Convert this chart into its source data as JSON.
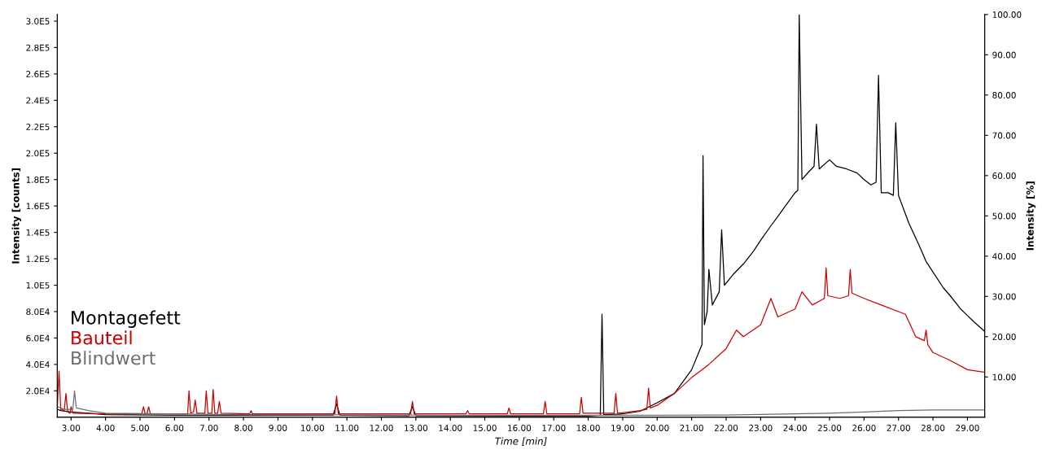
{
  "chart_data": {
    "type": "line",
    "xlabel": "Time [min]",
    "ylabel": "Intensity [counts]",
    "y2label": "Intensity [%]",
    "xlim": [
      2.6,
      29.5
    ],
    "ylim": [
      0,
      305000
    ],
    "y2lim": [
      0,
      100
    ],
    "xticks": [
      {
        "value": 3,
        "label": "3.00"
      },
      {
        "value": 4,
        "label": "4.00"
      },
      {
        "value": 5,
        "label": "5.00"
      },
      {
        "value": 6,
        "label": "6.00"
      },
      {
        "value": 7,
        "label": "7.00"
      },
      {
        "value": 8,
        "label": "8.00"
      },
      {
        "value": 9,
        "label": "9.00"
      },
      {
        "value": 10,
        "label": "10.00"
      },
      {
        "value": 11,
        "label": "11.00"
      },
      {
        "value": 12,
        "label": "12.00"
      },
      {
        "value": 13,
        "label": "13.00"
      },
      {
        "value": 14,
        "label": "14.00"
      },
      {
        "value": 15,
        "label": "15.00"
      },
      {
        "value": 16,
        "label": "16.00"
      },
      {
        "value": 17,
        "label": "17.00"
      },
      {
        "value": 18,
        "label": "18.00"
      },
      {
        "value": 19,
        "label": "19.00"
      },
      {
        "value": 20,
        "label": "20.00"
      },
      {
        "value": 21,
        "label": "21.00"
      },
      {
        "value": 22,
        "label": "22.00"
      },
      {
        "value": 23,
        "label": "23.00"
      },
      {
        "value": 24,
        "label": "24.00"
      },
      {
        "value": 25,
        "label": "25.00"
      },
      {
        "value": 26,
        "label": "26.00"
      },
      {
        "value": 27,
        "label": "27.00"
      },
      {
        "value": 28,
        "label": "28.00"
      },
      {
        "value": 29,
        "label": "29.00"
      }
    ],
    "yticks": [
      {
        "value": 20000,
        "label": "2.0E4"
      },
      {
        "value": 40000,
        "label": "4.0E4"
      },
      {
        "value": 60000,
        "label": "6.0E4"
      },
      {
        "value": 80000,
        "label": "8.0E4"
      },
      {
        "value": 100000,
        "label": "1.0E5"
      },
      {
        "value": 120000,
        "label": "1.2E5"
      },
      {
        "value": 140000,
        "label": "1.4E5"
      },
      {
        "value": 160000,
        "label": "1.6E5"
      },
      {
        "value": 180000,
        "label": "1.8E5"
      },
      {
        "value": 200000,
        "label": "2.0E5"
      },
      {
        "value": 220000,
        "label": "2.2E5"
      },
      {
        "value": 240000,
        "label": "2.4E5"
      },
      {
        "value": 260000,
        "label": "2.6E5"
      },
      {
        "value": 280000,
        "label": "2.8E5"
      },
      {
        "value": 300000,
        "label": "3.0E5"
      }
    ],
    "y2ticks": [
      {
        "value": 10,
        "label": "10.00"
      },
      {
        "value": 20,
        "label": "20.00"
      },
      {
        "value": 30,
        "label": "30.00"
      },
      {
        "value": 40,
        "label": "40.00"
      },
      {
        "value": 50,
        "label": "50.00"
      },
      {
        "value": 60,
        "label": "60.00"
      },
      {
        "value": 70,
        "label": "70.00"
      },
      {
        "value": 80,
        "label": "80.00"
      },
      {
        "value": 90,
        "label": "90.00"
      },
      {
        "value": 100,
        "label": "100.00"
      }
    ],
    "grid": false,
    "legend": "lower left",
    "series": [
      {
        "name": "Montagefett",
        "color": "#000000",
        "x": [
          2.6,
          2.7,
          3.0,
          3.5,
          4.0,
          6.0,
          10.6,
          10.7,
          10.8,
          12.8,
          12.9,
          13.0,
          16.0,
          18.0,
          18.35,
          18.4,
          18.45,
          19.0,
          19.5,
          20.0,
          20.5,
          21.0,
          21.3,
          21.33,
          21.37,
          21.45,
          21.5,
          21.6,
          21.8,
          21.87,
          21.95,
          22.2,
          22.5,
          22.8,
          23.0,
          23.3,
          23.5,
          23.8,
          24.0,
          24.08,
          24.12,
          24.2,
          24.4,
          24.55,
          24.62,
          24.7,
          25.0,
          25.2,
          25.5,
          25.8,
          26.0,
          26.2,
          26.35,
          26.42,
          26.5,
          26.7,
          26.85,
          26.92,
          27.0,
          27.3,
          27.6,
          27.8,
          28.0,
          28.3,
          28.5,
          28.8,
          29.0,
          29.2,
          29.5
        ],
        "values": [
          6000,
          5000,
          4000,
          3000,
          2000,
          1500,
          1500,
          10000,
          1500,
          1200,
          8000,
          1200,
          1000,
          1000,
          1500,
          78000,
          2000,
          2500,
          4500,
          11000,
          18000,
          36000,
          55000,
          198000,
          70000,
          80000,
          112000,
          85000,
          95000,
          142000,
          100000,
          108000,
          116000,
          126000,
          134000,
          145000,
          152000,
          163000,
          170000,
          172000,
          305000,
          180000,
          186000,
          190000,
          222000,
          188000,
          195000,
          190000,
          188000,
          185000,
          180000,
          176000,
          178000,
          259000,
          170000,
          170000,
          168000,
          223000,
          168000,
          147000,
          130000,
          118000,
          110000,
          98000,
          92000,
          82000,
          77000,
          72000,
          65000
        ]
      },
      {
        "name": "Bauteil",
        "color": "#cc0000",
        "x": [
          2.6,
          2.65,
          2.7,
          2.8,
          2.85,
          2.9,
          2.97,
          3.0,
          3.05,
          4.0,
          5.05,
          5.1,
          5.15,
          5.2,
          5.25,
          5.3,
          6.38,
          6.42,
          6.47,
          6.55,
          6.6,
          6.65,
          6.88,
          6.92,
          6.97,
          7.08,
          7.12,
          7.17,
          7.25,
          7.3,
          7.35,
          8.18,
          8.22,
          8.26,
          10.65,
          10.7,
          10.75,
          12.85,
          12.9,
          12.95,
          14.45,
          14.5,
          14.55,
          15.65,
          15.7,
          15.75,
          16.7,
          16.75,
          16.8,
          17.75,
          17.8,
          17.85,
          18.75,
          18.8,
          18.85,
          19.5,
          19.7,
          19.75,
          19.8,
          20.0,
          20.5,
          21.0,
          21.5,
          22.0,
          22.3,
          22.5,
          23.0,
          23.3,
          23.5,
          24.0,
          24.2,
          24.5,
          24.85,
          24.9,
          24.95,
          25.3,
          25.55,
          25.6,
          25.65,
          26.0,
          26.5,
          27.0,
          27.2,
          27.5,
          27.75,
          27.8,
          27.85,
          28.0,
          28.5,
          29.0,
          29.5
        ],
        "values": [
          8000,
          35000,
          6000,
          5000,
          18000,
          4000,
          3000,
          8000,
          3000,
          2500,
          2500,
          8000,
          2500,
          2500,
          8000,
          2500,
          2500,
          20000,
          3000,
          4000,
          13000,
          3000,
          3000,
          20000,
          3000,
          3000,
          21000,
          3000,
          3000,
          12000,
          3000,
          2500,
          5000,
          2500,
          2500,
          16000,
          2500,
          2500,
          12000,
          2500,
          2500,
          5000,
          2500,
          2500,
          7000,
          2500,
          2500,
          12000,
          2500,
          2500,
          15000,
          3000,
          3000,
          18000,
          3000,
          5000,
          6000,
          22000,
          7000,
          9000,
          18000,
          30000,
          40000,
          52000,
          66000,
          61000,
          70000,
          90000,
          76000,
          82000,
          95000,
          85000,
          90000,
          113000,
          92000,
          90000,
          92000,
          112000,
          94000,
          90000,
          85000,
          80000,
          78000,
          61000,
          58000,
          66000,
          55000,
          49000,
          43000,
          36000,
          34000
        ]
      },
      {
        "name": "Blindwert",
        "color": "#6e6e6e",
        "x": [
          2.6,
          2.8,
          3.05,
          3.1,
          3.15,
          3.5,
          4.0,
          8.0,
          14.0,
          20.0,
          22.0,
          24.0,
          25.0,
          26.0,
          27.0,
          28.0,
          29.5
        ],
        "values": [
          8000,
          6000,
          6000,
          20000,
          7000,
          5000,
          3000,
          2000,
          1500,
          1500,
          1700,
          2500,
          3000,
          4000,
          5000,
          5500,
          5500
        ]
      }
    ]
  }
}
